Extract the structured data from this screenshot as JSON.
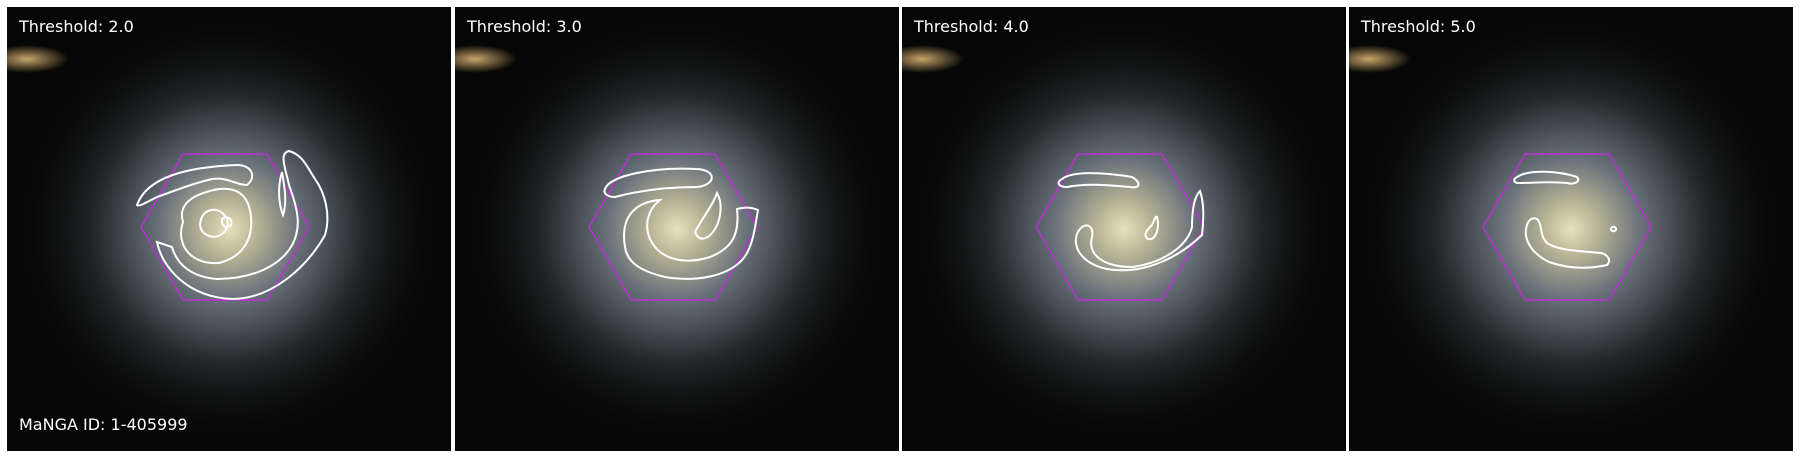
{
  "panels": [
    {
      "label": "Threshold: 2.0"
    },
    {
      "label": "Threshold: 3.0"
    },
    {
      "label": "Threshold: 4.0"
    },
    {
      "label": "Threshold: 5.0"
    }
  ],
  "galaxy_id": "MaNGA ID: 1-405999",
  "colors": {
    "background": "#050505",
    "contour": "#ffffff",
    "hexagon": "#c02ed8",
    "galaxy_core": "#d9d6b0",
    "galaxy_disk": "#9aa8b8"
  }
}
